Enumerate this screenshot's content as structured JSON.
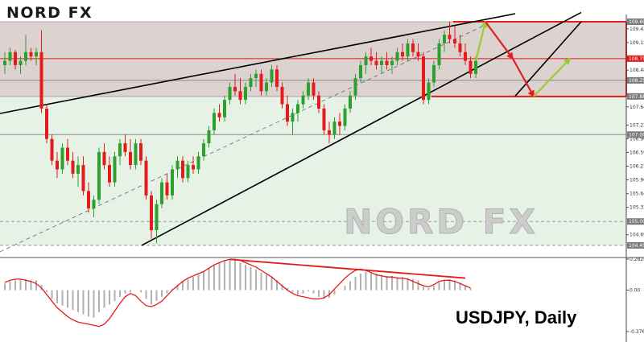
{
  "brand": {
    "logo": "NORD FX",
    "watermark": "NORD FX"
  },
  "caption": "USDJPY, Daily",
  "colors": {
    "bull": "#2ca02c",
    "bear": "#e31b1b",
    "zone_upper": "#dcd2d0",
    "zone_lower": "#e6f2e6",
    "trendline": "#000000",
    "level_line": "#e31b1b",
    "forecast_up": "#9acd32",
    "forecast_down": "#e02020",
    "histogram": "#b0b0b0",
    "signal": "#e31b1b"
  },
  "chart_data": [
    {
      "type": "candlestick",
      "symbol": "USDJPY",
      "timeframe": "Daily",
      "price_axis_ticks": [
        "109.435",
        "109.120",
        "108.485",
        "107.640",
        "107.220",
        "106.905",
        "106.590",
        "106.275",
        "105.960",
        "105.640",
        "105.325",
        "104.695"
      ],
      "price_axis_tags": [
        "109.600",
        "108.750",
        "108.250",
        "107.880",
        "107.000",
        "105.000",
        "104.450"
      ],
      "ylim": [
        104.3,
        109.6
      ],
      "levels": [
        109.6,
        108.75,
        108.25,
        107.88,
        107.0,
        105.0,
        104.45
      ],
      "zones": [
        {
          "from": 107.88,
          "to": 109.6,
          "color": "upper"
        },
        {
          "from": 104.45,
          "to": 107.88,
          "color": "lower"
        }
      ],
      "forecast": [
        109.6,
        108.75,
        107.88,
        108.75
      ],
      "candles": [
        [
          108.6,
          108.9,
          108.4,
          108.7
        ],
        [
          108.7,
          109.0,
          108.6,
          108.9
        ],
        [
          108.9,
          108.95,
          108.5,
          108.6
        ],
        [
          108.6,
          108.8,
          108.4,
          108.7
        ],
        [
          108.7,
          109.3,
          108.6,
          108.9
        ],
        [
          108.9,
          109.0,
          108.7,
          108.8
        ],
        [
          108.8,
          109.0,
          108.6,
          108.9
        ],
        [
          108.9,
          109.4,
          107.5,
          107.6
        ],
        [
          107.6,
          107.7,
          106.8,
          106.9
        ],
        [
          106.9,
          107.0,
          106.3,
          106.4
        ],
        [
          106.4,
          106.6,
          106.0,
          106.2
        ],
        [
          106.2,
          106.8,
          106.1,
          106.7
        ],
        [
          106.7,
          106.9,
          106.3,
          106.4
        ],
        [
          106.4,
          106.6,
          106.0,
          106.1
        ],
        [
          106.1,
          106.5,
          105.8,
          106.3
        ],
        [
          106.3,
          106.5,
          105.6,
          105.7
        ],
        [
          105.7,
          105.9,
          105.2,
          105.3
        ],
        [
          105.3,
          105.6,
          105.1,
          105.5
        ],
        [
          105.5,
          106.7,
          105.4,
          106.6
        ],
        [
          106.6,
          106.8,
          106.2,
          106.3
        ],
        [
          106.3,
          106.5,
          105.8,
          105.9
        ],
        [
          105.9,
          106.6,
          105.8,
          106.5
        ],
        [
          106.5,
          106.9,
          106.3,
          106.8
        ],
        [
          106.8,
          107.0,
          106.5,
          106.6
        ],
        [
          106.6,
          106.9,
          106.2,
          106.3
        ],
        [
          106.3,
          106.9,
          106.2,
          106.8
        ],
        [
          106.8,
          106.9,
          106.3,
          106.4
        ],
        [
          106.4,
          106.5,
          105.5,
          105.6
        ],
        [
          105.6,
          105.7,
          104.6,
          104.8
        ],
        [
          104.8,
          105.5,
          104.5,
          105.4
        ],
        [
          105.4,
          106.0,
          105.3,
          105.9
        ],
        [
          105.9,
          106.1,
          105.5,
          105.6
        ],
        [
          105.6,
          106.3,
          105.5,
          106.2
        ],
        [
          106.2,
          106.5,
          106.0,
          106.4
        ],
        [
          106.4,
          106.5,
          105.9,
          106.0
        ],
        [
          106.0,
          106.4,
          105.9,
          106.3
        ],
        [
          106.3,
          106.5,
          106.1,
          106.2
        ],
        [
          106.2,
          106.6,
          106.1,
          106.5
        ],
        [
          106.5,
          106.9,
          106.4,
          106.8
        ],
        [
          106.8,
          107.2,
          106.7,
          107.1
        ],
        [
          107.1,
          107.6,
          107.0,
          107.5
        ],
        [
          107.5,
          107.7,
          107.3,
          107.4
        ],
        [
          107.4,
          107.9,
          107.3,
          107.8
        ],
        [
          107.8,
          108.2,
          107.7,
          108.1
        ],
        [
          108.1,
          108.4,
          107.9,
          108.0
        ],
        [
          108.0,
          108.3,
          107.7,
          107.8
        ],
        [
          107.8,
          108.2,
          107.7,
          108.1
        ],
        [
          108.1,
          108.4,
          108.0,
          108.3
        ],
        [
          108.3,
          108.5,
          108.1,
          108.4
        ],
        [
          108.4,
          108.5,
          107.9,
          108.0
        ],
        [
          108.0,
          108.3,
          107.9,
          108.2
        ],
        [
          108.2,
          108.6,
          108.1,
          108.5
        ],
        [
          108.5,
          108.6,
          108.0,
          108.1
        ],
        [
          108.1,
          108.2,
          107.6,
          107.7
        ],
        [
          107.7,
          107.9,
          107.2,
          107.3
        ],
        [
          107.3,
          107.6,
          107.0,
          107.5
        ],
        [
          107.5,
          107.8,
          107.3,
          107.7
        ],
        [
          107.7,
          108.0,
          107.6,
          107.9
        ],
        [
          107.9,
          108.3,
          107.8,
          108.2
        ],
        [
          108.2,
          108.3,
          107.8,
          107.9
        ],
        [
          107.9,
          108.0,
          107.5,
          107.6
        ],
        [
          107.6,
          107.7,
          107.0,
          107.1
        ],
        [
          107.1,
          107.3,
          106.8,
          107.0
        ],
        [
          107.0,
          107.4,
          106.9,
          107.3
        ],
        [
          107.3,
          107.5,
          107.0,
          107.2
        ],
        [
          107.2,
          107.7,
          107.1,
          107.6
        ],
        [
          107.6,
          108.0,
          107.5,
          107.9
        ],
        [
          107.9,
          108.4,
          107.8,
          108.3
        ],
        [
          108.3,
          108.7,
          108.2,
          108.6
        ],
        [
          108.6,
          108.9,
          108.4,
          108.8
        ],
        [
          108.8,
          109.0,
          108.6,
          108.7
        ],
        [
          108.7,
          108.9,
          108.5,
          108.6
        ],
        [
          108.6,
          108.8,
          108.4,
          108.7
        ],
        [
          108.7,
          108.9,
          108.5,
          108.6
        ],
        [
          108.6,
          108.8,
          108.4,
          108.7
        ],
        [
          108.7,
          109.0,
          108.6,
          108.9
        ],
        [
          108.9,
          109.1,
          108.7,
          108.8
        ],
        [
          108.8,
          109.2,
          108.7,
          109.1
        ],
        [
          109.1,
          109.2,
          108.8,
          108.9
        ],
        [
          108.9,
          109.1,
          108.7,
          108.8
        ],
        [
          108.8,
          108.9,
          107.7,
          107.8
        ],
        [
          107.8,
          108.3,
          107.7,
          108.2
        ],
        [
          108.2,
          108.7,
          108.1,
          108.6
        ],
        [
          108.6,
          109.2,
          108.5,
          109.1
        ],
        [
          109.1,
          109.4,
          108.9,
          109.3
        ],
        [
          109.3,
          109.6,
          109.1,
          109.2
        ],
        [
          109.2,
          109.5,
          109.0,
          109.1
        ],
        [
          109.1,
          109.3,
          108.8,
          108.9
        ],
        [
          108.9,
          109.1,
          108.6,
          108.7
        ],
        [
          108.7,
          108.8,
          108.3,
          108.4
        ],
        [
          108.4,
          108.8,
          108.3,
          108.7
        ]
      ]
    },
    {
      "type": "macd",
      "y_axis_ticks": [
        "0.2824",
        "0.00",
        "-0.3764"
      ],
      "ylim": [
        -0.3764,
        0.2824
      ],
      "histogram": [
        0.06,
        0.08,
        0.09,
        0.1,
        0.1,
        0.09,
        0.09,
        0.05,
        -0.02,
        -0.08,
        -0.12,
        -0.14,
        -0.16,
        -0.18,
        -0.2,
        -0.22,
        -0.24,
        -0.25,
        -0.2,
        -0.16,
        -0.13,
        -0.1,
        -0.06,
        -0.03,
        -0.02,
        0.0,
        -0.02,
        -0.08,
        -0.13,
        -0.1,
        -0.06,
        -0.03,
        0.01,
        0.05,
        0.08,
        0.1,
        0.12,
        0.14,
        0.17,
        0.2,
        0.23,
        0.25,
        0.27,
        0.28,
        0.27,
        0.25,
        0.23,
        0.21,
        0.19,
        0.16,
        0.14,
        0.12,
        0.09,
        0.05,
        0.02,
        -0.02,
        -0.04,
        -0.03,
        -0.01,
        -0.03,
        -0.06,
        -0.08,
        -0.07,
        -0.04,
        0.0,
        0.04,
        0.08,
        0.12,
        0.15,
        0.17,
        0.16,
        0.15,
        0.14,
        0.13,
        0.13,
        0.12,
        0.12,
        0.11,
        0.1,
        0.09,
        0.03,
        0.02,
        0.04,
        0.07,
        0.09,
        0.1,
        0.09,
        0.07,
        0.04,
        0.02
      ],
      "signal": [
        0.07,
        0.09,
        0.1,
        0.1,
        0.09,
        0.08,
        0.06,
        0.02,
        -0.04,
        -0.1,
        -0.16,
        -0.2,
        -0.24,
        -0.27,
        -0.29,
        -0.3,
        -0.31,
        -0.32,
        -0.33,
        -0.31,
        -0.26,
        -0.19,
        -0.12,
        -0.06,
        -0.03,
        -0.05,
        -0.1,
        -0.14,
        -0.15,
        -0.13,
        -0.1,
        -0.05,
        0.0,
        0.04,
        0.08,
        0.11,
        0.13,
        0.15,
        0.17,
        0.2,
        0.23,
        0.25,
        0.27,
        0.28,
        0.28,
        0.27,
        0.25,
        0.23,
        0.21,
        0.18,
        0.15,
        0.12,
        0.08,
        0.04,
        0.0,
        -0.03,
        -0.05,
        -0.06,
        -0.07,
        -0.08,
        -0.08,
        -0.07,
        -0.04,
        0.01,
        0.06,
        0.11,
        0.15,
        0.18,
        0.19,
        0.18,
        0.16,
        0.14,
        0.13,
        0.12,
        0.12,
        0.11,
        0.11,
        0.1,
        0.08,
        0.06,
        0.04,
        0.03,
        0.05,
        0.08,
        0.09,
        0.09,
        0.08,
        0.06,
        0.04,
        0.02
      ],
      "divergence_line": [
        0.28,
        0.11
      ]
    }
  ]
}
